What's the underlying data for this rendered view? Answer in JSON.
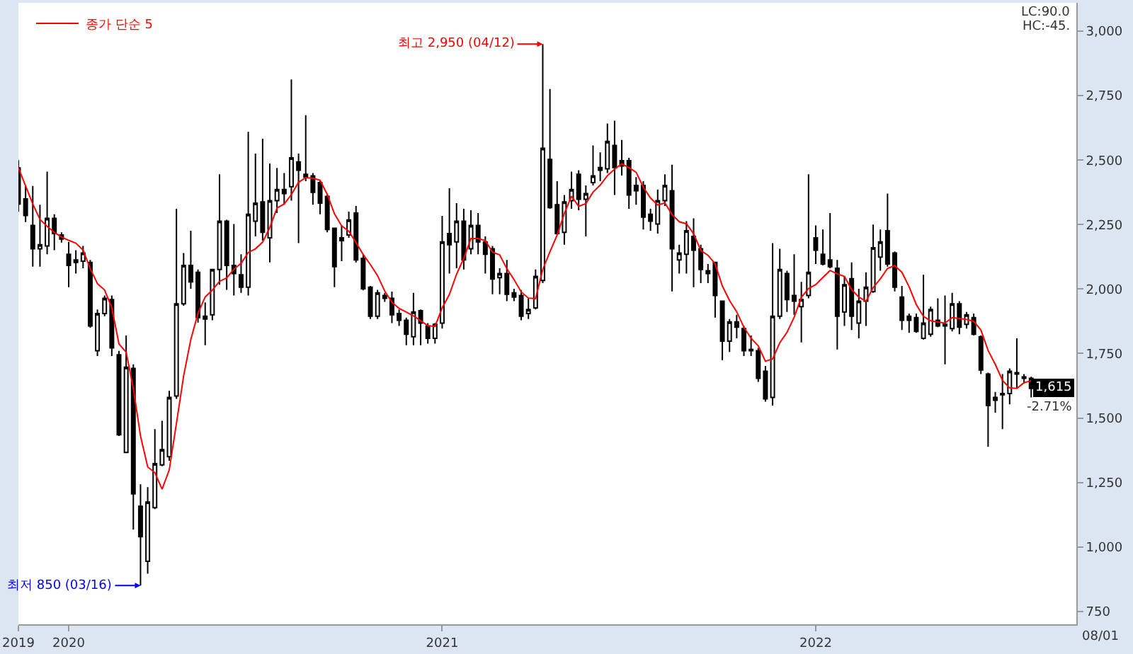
{
  "chart_data": {
    "type": "candlestick",
    "x": [
      "2019-11-18",
      "2019-11-25",
      "2019-12-02",
      "2019-12-09",
      "2019-12-16",
      "2019-12-23",
      "2019-12-30",
      "2020-01-06",
      "2020-01-13",
      "2020-01-20",
      "2020-01-27",
      "2020-02-03",
      "2020-02-10",
      "2020-02-17",
      "2020-02-24",
      "2020-03-02",
      "2020-03-09",
      "2020-03-16",
      "2020-03-23",
      "2020-03-30",
      "2020-04-06",
      "2020-04-13",
      "2020-04-20",
      "2020-04-27",
      "2020-05-04",
      "2020-05-11",
      "2020-05-18",
      "2020-05-25",
      "2020-06-01",
      "2020-06-08",
      "2020-06-15",
      "2020-06-22",
      "2020-06-29",
      "2020-07-06",
      "2020-07-13",
      "2020-07-20",
      "2020-07-27",
      "2020-08-03",
      "2020-08-10",
      "2020-08-17",
      "2020-08-24",
      "2020-08-31",
      "2020-09-07",
      "2020-09-14",
      "2020-09-21",
      "2020-09-28",
      "2020-10-05",
      "2020-10-12",
      "2020-10-19",
      "2020-10-26",
      "2020-11-02",
      "2020-11-09",
      "2020-11-16",
      "2020-11-23",
      "2020-11-30",
      "2020-12-07",
      "2020-12-14",
      "2020-12-21",
      "2020-12-28",
      "2021-01-04",
      "2021-01-11",
      "2021-01-18",
      "2021-01-25",
      "2021-02-01",
      "2021-02-08",
      "2021-02-15",
      "2021-02-22",
      "2021-03-01",
      "2021-03-08",
      "2021-03-15",
      "2021-03-22",
      "2021-03-29",
      "2021-04-05",
      "2021-04-12",
      "2021-04-19",
      "2021-04-26",
      "2021-05-03",
      "2021-05-10",
      "2021-05-17",
      "2021-05-24",
      "2021-05-31",
      "2021-06-07",
      "2021-06-14",
      "2021-06-21",
      "2021-06-28",
      "2021-07-05",
      "2021-07-12",
      "2021-07-19",
      "2021-07-26",
      "2021-08-02",
      "2021-08-09",
      "2021-08-16",
      "2021-08-23",
      "2021-08-30",
      "2021-09-06",
      "2021-09-13",
      "2021-09-20",
      "2021-09-27",
      "2021-10-04",
      "2021-10-11",
      "2021-10-18",
      "2021-10-25",
      "2021-11-01",
      "2021-11-08",
      "2021-11-15",
      "2021-11-22",
      "2021-11-29",
      "2021-12-06",
      "2021-12-13",
      "2021-12-20",
      "2021-12-27",
      "2022-01-03",
      "2022-01-10",
      "2022-01-17",
      "2022-01-24",
      "2022-01-31",
      "2022-02-07",
      "2022-02-14",
      "2022-02-21",
      "2022-02-28",
      "2022-03-07",
      "2022-03-14",
      "2022-03-21",
      "2022-03-28",
      "2022-04-04",
      "2022-04-11",
      "2022-04-18",
      "2022-04-25",
      "2022-05-02",
      "2022-05-09",
      "2022-05-16",
      "2022-05-23",
      "2022-05-30",
      "2022-06-06",
      "2022-06-13",
      "2022-06-20",
      "2022-06-27",
      "2022-07-04",
      "2022-07-11",
      "2022-07-18",
      "2022-07-25",
      "2022-08-01"
    ],
    "ohlc": [
      [
        2470,
        2500,
        2300,
        2330
      ],
      [
        2350,
        2400,
        2260,
        2285
      ],
      [
        2247,
        2400,
        2087,
        2156
      ],
      [
        2156,
        2327,
        2087,
        2172
      ],
      [
        2167,
        2455,
        2135,
        2274
      ],
      [
        2274,
        2290,
        2151,
        2215
      ],
      [
        2210,
        2220,
        2180,
        2194
      ],
      [
        2135,
        2183,
        2007,
        2092
      ],
      [
        2103,
        2151,
        2060,
        2113
      ],
      [
        2108,
        2167,
        2081,
        2140
      ],
      [
        2103,
        2113,
        1850,
        1857
      ],
      [
        1761,
        1921,
        1740,
        1905
      ],
      [
        1905,
        1975,
        1895,
        1964
      ],
      [
        1959,
        1975,
        1740,
        1772
      ],
      [
        1745,
        1760,
        1430,
        1435
      ],
      [
        1366,
        1820,
        1366,
        1697
      ],
      [
        1692,
        1708,
        1067,
        1206
      ],
      [
        1158,
        1243,
        850,
        1040
      ],
      [
        944,
        1232,
        896,
        1174
      ],
      [
        1152,
        1457,
        1147,
        1323
      ],
      [
        1318,
        1489,
        1313,
        1377
      ],
      [
        1350,
        1606,
        1334,
        1580
      ],
      [
        1585,
        2311,
        1574,
        1943
      ],
      [
        1943,
        2140,
        1935,
        2092
      ],
      [
        2092,
        2226,
        2001,
        2028
      ],
      [
        2065,
        2076,
        1870,
        1889
      ],
      [
        1884,
        1948,
        1782,
        1895
      ],
      [
        1900,
        2076,
        1879,
        2076
      ],
      [
        2076,
        2445,
        2017,
        2263
      ],
      [
        2263,
        2269,
        1997,
        2092
      ],
      [
        2092,
        2252,
        1975,
        2060
      ],
      [
        2055,
        2135,
        1985,
        2007
      ],
      [
        2007,
        2610,
        1975,
        2290
      ],
      [
        2263,
        2525,
        2204,
        2333
      ],
      [
        2338,
        2583,
        2188,
        2220
      ],
      [
        2199,
        2487,
        2103,
        2343
      ],
      [
        2343,
        2470,
        2295,
        2386
      ],
      [
        2386,
        2450,
        2327,
        2370
      ],
      [
        2397,
        2813,
        2343,
        2509
      ],
      [
        2493,
        2525,
        2178,
        2461
      ],
      [
        2445,
        2674,
        2418,
        2434
      ],
      [
        2439,
        2450,
        2327,
        2375
      ],
      [
        2413,
        2420,
        2290,
        2333
      ],
      [
        2359,
        2370,
        2220,
        2231
      ],
      [
        2236,
        2236,
        2007,
        2087
      ],
      [
        2188,
        2247,
        2108,
        2199
      ],
      [
        2210,
        2300,
        2199,
        2268
      ],
      [
        2295,
        2322,
        2103,
        2113
      ],
      [
        2119,
        2135,
        1995,
        2001
      ],
      [
        2007,
        2012,
        1884,
        1895
      ],
      [
        1895,
        1997,
        1884,
        1985
      ],
      [
        1975,
        1985,
        1950,
        1964
      ],
      [
        1964,
        1990,
        1868,
        1900
      ],
      [
        1905,
        1921,
        1857,
        1879
      ],
      [
        1879,
        1889,
        1782,
        1825
      ],
      [
        1815,
        1985,
        1782,
        1911
      ],
      [
        1916,
        1921,
        1782,
        1868
      ],
      [
        1857,
        1868,
        1788,
        1809
      ],
      [
        1809,
        1868,
        1788,
        1863
      ],
      [
        1868,
        2284,
        1847,
        2183
      ],
      [
        2215,
        2391,
        2060,
        2172
      ],
      [
        2183,
        2333,
        2081,
        2263
      ],
      [
        2263,
        2311,
        2076,
        2113
      ],
      [
        2156,
        2306,
        2135,
        2247
      ],
      [
        2247,
        2295,
        2135,
        2183
      ],
      [
        2183,
        2204,
        2060,
        2135
      ],
      [
        2156,
        2167,
        1980,
        2039
      ],
      [
        2044,
        2081,
        1980,
        2060
      ],
      [
        2060,
        2113,
        1953,
        1980
      ],
      [
        1985,
        2001,
        1953,
        1969
      ],
      [
        1975,
        1996,
        1879,
        1895
      ],
      [
        1905,
        1964,
        1884,
        1921
      ],
      [
        1927,
        2076,
        1921,
        2049
      ],
      [
        2033,
        2950,
        2023,
        2546
      ],
      [
        2503,
        2776,
        2311,
        2316
      ],
      [
        2327,
        2418,
        2210,
        2215
      ],
      [
        2220,
        2365,
        2172,
        2338
      ],
      [
        2343,
        2455,
        2311,
        2386
      ],
      [
        2445,
        2461,
        2306,
        2348
      ],
      [
        2348,
        2402,
        2204,
        2370
      ],
      [
        2413,
        2557,
        2402,
        2439
      ],
      [
        2461,
        2530,
        2418,
        2471
      ],
      [
        2466,
        2642,
        2450,
        2573
      ],
      [
        2557,
        2653,
        2365,
        2471
      ],
      [
        2498,
        2578,
        2440,
        2477
      ],
      [
        2498,
        2509,
        2311,
        2365
      ],
      [
        2402,
        2434,
        2327,
        2381
      ],
      [
        2402,
        2418,
        2231,
        2279
      ],
      [
        2290,
        2311,
        2226,
        2263
      ],
      [
        2252,
        2386,
        2215,
        2343
      ],
      [
        2343,
        2445,
        2322,
        2402
      ],
      [
        2381,
        2482,
        1991,
        2156
      ],
      [
        2113,
        2172,
        2060,
        2140
      ],
      [
        2135,
        2263,
        2060,
        2226
      ],
      [
        2204,
        2274,
        2007,
        2151
      ],
      [
        2156,
        2172,
        2023,
        2076
      ],
      [
        2071,
        2097,
        2023,
        2060
      ],
      [
        2103,
        2103,
        1889,
        1975
      ],
      [
        1953,
        1953,
        1724,
        1798
      ],
      [
        1798,
        1884,
        1756,
        1873
      ],
      [
        1873,
        1900,
        1809,
        1852
      ],
      [
        1847,
        1857,
        1740,
        1761
      ],
      [
        1766,
        1820,
        1740,
        1761
      ],
      [
        1761,
        1772,
        1640,
        1654
      ],
      [
        1681,
        1702,
        1563,
        1574
      ],
      [
        1580,
        2178,
        1548,
        1895
      ],
      [
        1895,
        2156,
        1884,
        2076
      ],
      [
        2060,
        2071,
        1911,
        1959
      ],
      [
        1975,
        2135,
        1900,
        1953
      ],
      [
        1932,
        2028,
        1793,
        1959
      ],
      [
        1975,
        2445,
        1964,
        2065
      ],
      [
        2199,
        2247,
        2097,
        2151
      ],
      [
        2135,
        2231,
        2092,
        2097
      ],
      [
        2113,
        2295,
        2081,
        2087
      ],
      [
        2081,
        2113,
        1766,
        1895
      ],
      [
        1911,
        2049,
        1857,
        2017
      ],
      [
        2040,
        2103,
        1841,
        1895
      ],
      [
        1868,
        2001,
        1809,
        1953
      ],
      [
        1953,
        2065,
        1857,
        2007
      ],
      [
        1990,
        2250,
        1985,
        2160
      ],
      [
        2124,
        2231,
        2071,
        2183
      ],
      [
        2226,
        2370,
        2087,
        2097
      ],
      [
        2140,
        2146,
        1991,
        2007
      ],
      [
        1969,
        2012,
        1841,
        1879
      ],
      [
        1895,
        1905,
        1830,
        1879
      ],
      [
        1889,
        1905,
        1830,
        1836
      ],
      [
        1809,
        2055,
        1804,
        1868
      ],
      [
        1825,
        1932,
        1815,
        1921
      ],
      [
        1879,
        1964,
        1852,
        1857
      ],
      [
        1863,
        1975,
        1708,
        1857
      ],
      [
        1847,
        1985,
        1836,
        1943
      ],
      [
        1943,
        1953,
        1825,
        1852
      ],
      [
        1863,
        1911,
        1847,
        1900
      ],
      [
        1889,
        1905,
        1820,
        1825
      ],
      [
        1815,
        1820,
        1670,
        1686
      ],
      [
        1670,
        1676,
        1388,
        1548
      ],
      [
        1569,
        1601,
        1521,
        1580
      ],
      [
        1595,
        1670,
        1457,
        1590
      ],
      [
        1595,
        1692,
        1553,
        1681
      ],
      [
        1670,
        1809,
        1617,
        1676
      ],
      [
        1654,
        1670,
        1633,
        1659
      ],
      [
        1654,
        1660,
        1580,
        1615
      ]
    ],
    "series": [
      {
        "type": "line",
        "name": "종가 단순 5",
        "color": "#ff0000",
        "values": [
          2470,
          2400,
          2330,
          2270,
          2243,
          2220,
          2202,
          2189,
          2178,
          2151,
          2079,
          2021,
          1996,
          1928,
          1787,
          1755,
          1615,
          1430,
          1310,
          1288,
          1224,
          1299,
          1479,
          1663,
          1804,
          1906,
          1969,
          1996,
          2030,
          2043,
          2077,
          2100,
          2142,
          2156,
          2182,
          2239,
          2314,
          2330,
          2366,
          2414,
          2432,
          2430,
          2422,
          2367,
          2292,
          2245,
          2224,
          2180,
          2134,
          2095,
          2052,
          1992,
          1949,
          1925,
          1911,
          1896,
          1877,
          1858,
          1855,
          1927,
          1979,
          2058,
          2119,
          2196,
          2196,
          2188,
          2143,
          2133,
          2079,
          2037,
          1989,
          1965,
          1963,
          2076,
          2145,
          2209,
          2293,
          2360,
          2321,
          2331,
          2376,
          2403,
          2440,
          2465,
          2486,
          2471,
          2453,
          2395,
          2353,
          2326,
          2334,
          2289,
          2261,
          2253,
          2215,
          2150,
          2131,
          2098,
          2012,
          1956,
          1912,
          1852,
          1809,
          1780,
          1720,
          1729,
          1792,
          1832,
          1891,
          1968,
          2002,
          2017,
          2045,
          2072,
          2059,
          2049,
          1998,
          1969,
          1953,
          2006,
          2040,
          2080,
          2091,
          2065,
          2009,
          1940,
          1894,
          1877,
          1872,
          1868,
          1889,
          1886,
          1882,
          1875,
          1841,
          1762,
          1708,
          1646,
          1617,
          1615,
          1637,
          1644
        ]
      }
    ],
    "xlim": [
      "2019-11-18",
      "2022-09-14"
    ],
    "xticks": [
      {
        "value": "2019-11-18",
        "label": "2019"
      },
      {
        "value": "2020-01-06",
        "label": "2020"
      },
      {
        "value": "2021-01-04",
        "label": "2021"
      },
      {
        "value": "2022-01-03",
        "label": "2022"
      }
    ],
    "ylim": [
      700,
      3110
    ],
    "yticks": [
      {
        "value": 750,
        "label": "750"
      },
      {
        "value": 1000,
        "label": "1,000"
      },
      {
        "value": 1250,
        "label": "1,250"
      },
      {
        "value": 1500,
        "label": "1,500"
      },
      {
        "value": 1750,
        "label": "1,750"
      },
      {
        "value": 2000,
        "label": "2,000"
      },
      {
        "value": 2250,
        "label": "2,250"
      },
      {
        "value": 2500,
        "label": "2,500"
      },
      {
        "value": 2750,
        "label": "2,750"
      },
      {
        "value": 3000,
        "label": "3,000"
      }
    ],
    "annotations": [
      {
        "text": "최고 2,950 (04/12)",
        "x": "2021-04-12",
        "y": 2950
      },
      {
        "text": "최저 850 (03/16)",
        "x": "2020-03-16",
        "y": 850
      },
      "1,615",
      "-2.71%",
      "08/01",
      "LC:90.0",
      "HC:-45."
    ],
    "legend": "top left",
    "grid": false
  }
}
